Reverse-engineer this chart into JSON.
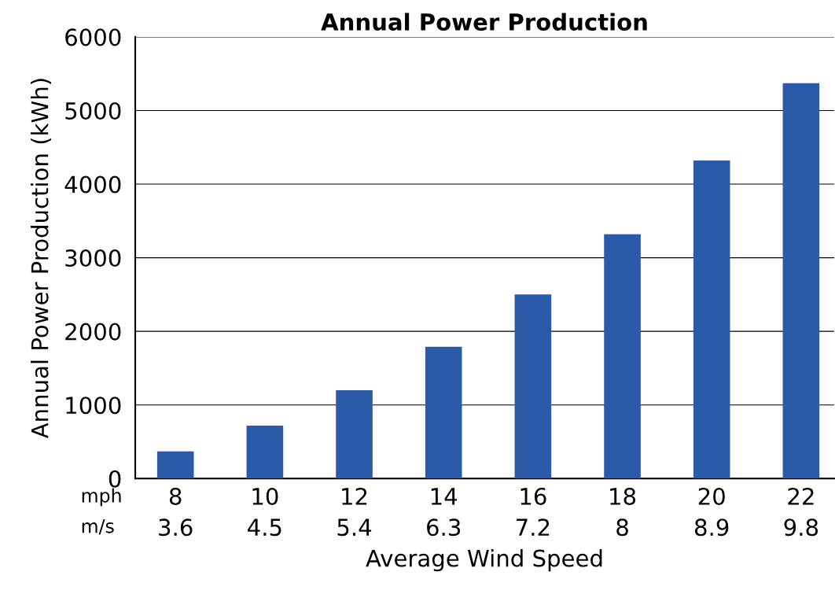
{
  "chart_data": {
    "type": "bar",
    "title": "Annual Power Production",
    "xlabel": "Average Wind Speed",
    "ylabel": "Annual Power Production (kWh)",
    "categories": [
      "8\n3.6",
      "10\n4.5",
      "12\n5.4",
      "14\n6.3",
      "16\n7.2",
      "18\n8",
      "20\n8.9",
      "22\n9.8"
    ],
    "values": [
      370,
      720,
      1200,
      1790,
      2500,
      3320,
      4320,
      5370
    ],
    "color": "#2a5aa8",
    "annotations": [
      "mph",
      "m/s"
    ],
    "ylim": [
      0,
      6000
    ],
    "yticks": [
      0,
      1000,
      2000,
      3000,
      4000,
      5000,
      6000
    ],
    "grid": "y",
    "legend": false
  }
}
